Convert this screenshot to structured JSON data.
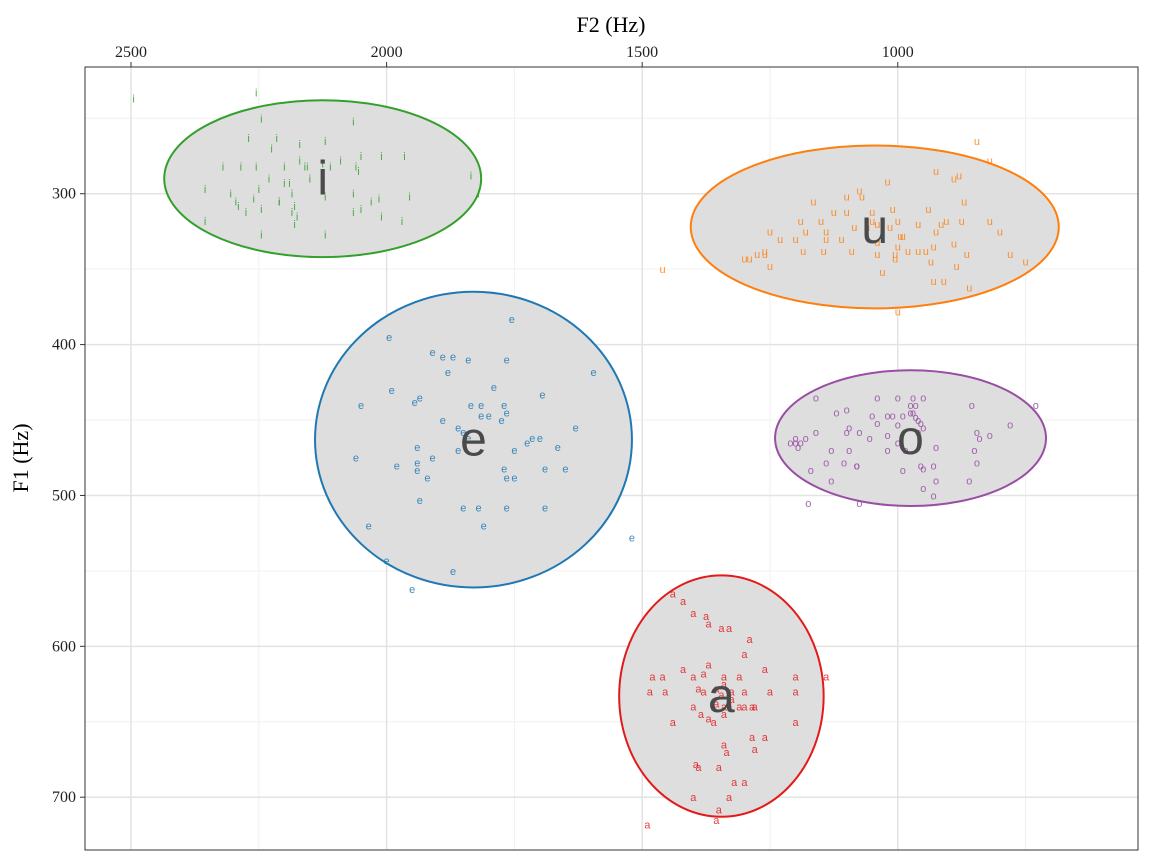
{
  "chart_data": {
    "type": "scatter",
    "xlabel": "F2 (Hz)",
    "ylabel": "F1 (Hz)",
    "x_axis_position": "top",
    "x_reversed": true,
    "y_reversed": true,
    "xlim": [
      2590,
      530
    ],
    "ylim": [
      216,
      735
    ],
    "x_ticks": [
      2500,
      2000,
      1500,
      1000
    ],
    "y_ticks": [
      300,
      400,
      500,
      600,
      700
    ],
    "grid": true,
    "ellipse_fill": "#dedede",
    "series": [
      {
        "name": "i",
        "color": "#33a02c",
        "ellipse": {
          "cx": 2125,
          "cy": 290,
          "rx": 310,
          "ry": 52
        },
        "points": [
          [
            2495,
            237
          ],
          [
            2255,
            233
          ],
          [
            2245,
            250
          ],
          [
            2215,
            263
          ],
          [
            2270,
            263
          ],
          [
            2225,
            270
          ],
          [
            2170,
            267
          ],
          [
            2120,
            265
          ],
          [
            2065,
            252
          ],
          [
            2010,
            275
          ],
          [
            1965,
            275
          ],
          [
            2050,
            275
          ],
          [
            2090,
            278
          ],
          [
            2110,
            282
          ],
          [
            2170,
            278
          ],
          [
            2155,
            282
          ],
          [
            2255,
            282
          ],
          [
            2320,
            282
          ],
          [
            2285,
            282
          ],
          [
            2200,
            282
          ],
          [
            2200,
            293
          ],
          [
            2160,
            282
          ],
          [
            2060,
            282
          ],
          [
            2055,
            285
          ],
          [
            2125,
            280
          ],
          [
            2150,
            290
          ],
          [
            2230,
            290
          ],
          [
            2250,
            297
          ],
          [
            2190,
            293
          ],
          [
            2355,
            297
          ],
          [
            2185,
            300
          ],
          [
            2260,
            303
          ],
          [
            2305,
            300
          ],
          [
            2210,
            305
          ],
          [
            2180,
            308
          ],
          [
            2120,
            302
          ],
          [
            2065,
            300
          ],
          [
            2015,
            303
          ],
          [
            1955,
            302
          ],
          [
            2295,
            305
          ],
          [
            2290,
            308
          ],
          [
            2050,
            310
          ],
          [
            2065,
            312
          ],
          [
            2245,
            310
          ],
          [
            2275,
            312
          ],
          [
            2185,
            312
          ],
          [
            2175,
            315
          ],
          [
            2355,
            318
          ],
          [
            2180,
            320
          ],
          [
            2010,
            315
          ],
          [
            1970,
            318
          ],
          [
            2245,
            327
          ],
          [
            2120,
            327
          ],
          [
            2210,
            305
          ],
          [
            2030,
            305
          ],
          [
            1835,
            288
          ],
          [
            1820,
            300
          ]
        ]
      },
      {
        "name": "u",
        "color": "#ff7f0e",
        "ellipse": {
          "cx": 1045,
          "cy": 322,
          "rx": 360,
          "ry": 54
        },
        "points": [
          [
            845,
            265
          ],
          [
            820,
            278
          ],
          [
            925,
            285
          ],
          [
            890,
            290
          ],
          [
            880,
            288
          ],
          [
            1020,
            292
          ],
          [
            1075,
            298
          ],
          [
            1070,
            302
          ],
          [
            1100,
            302
          ],
          [
            1165,
            305
          ],
          [
            1010,
            310
          ],
          [
            940,
            310
          ],
          [
            870,
            305
          ],
          [
            1050,
            312
          ],
          [
            1100,
            312
          ],
          [
            1125,
            312
          ],
          [
            1150,
            318
          ],
          [
            1190,
            318
          ],
          [
            1050,
            318
          ],
          [
            1040,
            320
          ],
          [
            1000,
            318
          ],
          [
            960,
            320
          ],
          [
            915,
            320
          ],
          [
            905,
            318
          ],
          [
            875,
            318
          ],
          [
            820,
            318
          ],
          [
            995,
            328
          ],
          [
            1015,
            322
          ],
          [
            1060,
            322
          ],
          [
            1085,
            322
          ],
          [
            1140,
            325
          ],
          [
            1180,
            325
          ],
          [
            1250,
            325
          ],
          [
            1200,
            330
          ],
          [
            1230,
            330
          ],
          [
            800,
            325
          ],
          [
            925,
            325
          ],
          [
            990,
            328
          ],
          [
            1110,
            330
          ],
          [
            1140,
            330
          ],
          [
            1260,
            338
          ],
          [
            1040,
            332
          ],
          [
            930,
            335
          ],
          [
            890,
            333
          ],
          [
            1090,
            338
          ],
          [
            1145,
            338
          ],
          [
            1185,
            338
          ],
          [
            1260,
            340
          ],
          [
            1000,
            335
          ],
          [
            980,
            338
          ],
          [
            960,
            338
          ],
          [
            1040,
            340
          ],
          [
            1005,
            340
          ],
          [
            945,
            338
          ],
          [
            865,
            340
          ],
          [
            780,
            340
          ],
          [
            1275,
            340
          ],
          [
            1290,
            343
          ],
          [
            1300,
            343
          ],
          [
            1005,
            343
          ],
          [
            935,
            345
          ],
          [
            750,
            345
          ],
          [
            1250,
            348
          ],
          [
            885,
            348
          ],
          [
            1030,
            352
          ],
          [
            930,
            358
          ],
          [
            910,
            358
          ],
          [
            860,
            362
          ],
          [
            1460,
            350
          ],
          [
            1000,
            378
          ]
        ]
      },
      {
        "name": "e",
        "color": "#1f78b4",
        "ellipse": {
          "cx": 1830,
          "cy": 463,
          "rx": 310,
          "ry": 98
        },
        "points": [
          [
            1755,
            383
          ],
          [
            1995,
            395
          ],
          [
            1910,
            405
          ],
          [
            1890,
            408
          ],
          [
            1870,
            408
          ],
          [
            1840,
            410
          ],
          [
            1765,
            410
          ],
          [
            1595,
            418
          ],
          [
            1880,
            418
          ],
          [
            1790,
            428
          ],
          [
            1990,
            430
          ],
          [
            1935,
            435
          ],
          [
            1945,
            438
          ],
          [
            1695,
            433
          ],
          [
            2050,
            440
          ],
          [
            1770,
            440
          ],
          [
            1765,
            445
          ],
          [
            1815,
            440
          ],
          [
            1835,
            440
          ],
          [
            1815,
            447
          ],
          [
            1800,
            447
          ],
          [
            1775,
            450
          ],
          [
            1890,
            450
          ],
          [
            1630,
            455
          ],
          [
            1860,
            455
          ],
          [
            1850,
            458
          ],
          [
            1840,
            462
          ],
          [
            1715,
            462
          ],
          [
            1700,
            462
          ],
          [
            1725,
            465
          ],
          [
            1665,
            468
          ],
          [
            1940,
            468
          ],
          [
            1860,
            470
          ],
          [
            1750,
            470
          ],
          [
            2060,
            475
          ],
          [
            1910,
            475
          ],
          [
            1940,
            478
          ],
          [
            1980,
            480
          ],
          [
            1770,
            482
          ],
          [
            1690,
            482
          ],
          [
            1650,
            482
          ],
          [
            1940,
            483
          ],
          [
            1765,
            488
          ],
          [
            1750,
            488
          ],
          [
            1920,
            488
          ],
          [
            1935,
            503
          ],
          [
            1850,
            508
          ],
          [
            1820,
            508
          ],
          [
            1765,
            508
          ],
          [
            1690,
            508
          ],
          [
            2035,
            520
          ],
          [
            1810,
            520
          ],
          [
            1520,
            528
          ],
          [
            2000,
            543
          ],
          [
            1870,
            550
          ],
          [
            1950,
            562
          ]
        ]
      },
      {
        "name": "o",
        "color": "#984ea3",
        "ellipse": {
          "cx": 975,
          "cy": 462,
          "rx": 265,
          "ry": 45
        },
        "points": [
          [
            1160,
            435
          ],
          [
            1040,
            435
          ],
          [
            1000,
            435
          ],
          [
            970,
            435
          ],
          [
            950,
            435
          ],
          [
            965,
            440
          ],
          [
            975,
            440
          ],
          [
            975,
            445
          ],
          [
            855,
            440
          ],
          [
            730,
            440
          ],
          [
            1120,
            445
          ],
          [
            1100,
            443
          ],
          [
            1050,
            447
          ],
          [
            1020,
            447
          ],
          [
            1010,
            447
          ],
          [
            990,
            447
          ],
          [
            970,
            445
          ],
          [
            965,
            448
          ],
          [
            960,
            450
          ],
          [
            955,
            452
          ],
          [
            1000,
            453
          ],
          [
            1040,
            452
          ],
          [
            950,
            455
          ],
          [
            960,
            458
          ],
          [
            845,
            458
          ],
          [
            820,
            460
          ],
          [
            780,
            453
          ],
          [
            1095,
            455
          ],
          [
            1100,
            458
          ],
          [
            1075,
            458
          ],
          [
            1160,
            458
          ],
          [
            1180,
            462
          ],
          [
            1190,
            465
          ],
          [
            1020,
            460
          ],
          [
            1000,
            465
          ],
          [
            1200,
            462
          ],
          [
            1055,
            462
          ],
          [
            840,
            462
          ],
          [
            1195,
            468
          ],
          [
            1210,
            465
          ],
          [
            1130,
            470
          ],
          [
            1095,
            470
          ],
          [
            985,
            470
          ],
          [
            1020,
            470
          ],
          [
            1200,
            465
          ],
          [
            850,
            470
          ],
          [
            925,
            468
          ],
          [
            1140,
            478
          ],
          [
            1105,
            478
          ],
          [
            1080,
            480
          ],
          [
            955,
            480
          ],
          [
            930,
            480
          ],
          [
            990,
            483
          ],
          [
            1170,
            483
          ],
          [
            1080,
            480
          ],
          [
            950,
            482
          ],
          [
            845,
            478
          ],
          [
            1130,
            490
          ],
          [
            925,
            490
          ],
          [
            860,
            490
          ],
          [
            950,
            495
          ],
          [
            930,
            500
          ],
          [
            1175,
            505
          ],
          [
            1075,
            505
          ]
        ]
      },
      {
        "name": "a",
        "color": "#e31a1c",
        "ellipse": {
          "cx": 1345,
          "cy": 633,
          "rx": 200,
          "ry": 80
        },
        "points": [
          [
            1440,
            565
          ],
          [
            1420,
            570
          ],
          [
            1400,
            578
          ],
          [
            1375,
            580
          ],
          [
            1370,
            585
          ],
          [
            1345,
            588
          ],
          [
            1330,
            588
          ],
          [
            1290,
            595
          ],
          [
            1300,
            605
          ],
          [
            1370,
            612
          ],
          [
            1380,
            618
          ],
          [
            1420,
            615
          ],
          [
            1260,
            615
          ],
          [
            1480,
            620
          ],
          [
            1460,
            620
          ],
          [
            1400,
            620
          ],
          [
            1340,
            620
          ],
          [
            1310,
            620
          ],
          [
            1200,
            620
          ],
          [
            1140,
            620
          ],
          [
            1340,
            625
          ],
          [
            1355,
            628
          ],
          [
            1485,
            630
          ],
          [
            1455,
            630
          ],
          [
            1300,
            630
          ],
          [
            1250,
            630
          ],
          [
            1200,
            630
          ],
          [
            1390,
            628
          ],
          [
            1380,
            630
          ],
          [
            1345,
            632
          ],
          [
            1325,
            630
          ],
          [
            1325,
            635
          ],
          [
            1355,
            638
          ],
          [
            1340,
            640
          ],
          [
            1300,
            640
          ],
          [
            1285,
            640
          ],
          [
            1280,
            640
          ],
          [
            1400,
            640
          ],
          [
            1330,
            638
          ],
          [
            1310,
            640
          ],
          [
            1340,
            645
          ],
          [
            1385,
            645
          ],
          [
            1370,
            648
          ],
          [
            1360,
            650
          ],
          [
            1440,
            650
          ],
          [
            1200,
            650
          ],
          [
            1285,
            660
          ],
          [
            1260,
            660
          ],
          [
            1340,
            665
          ],
          [
            1335,
            670
          ],
          [
            1280,
            668
          ],
          [
            1395,
            678
          ],
          [
            1350,
            680
          ],
          [
            1390,
            680
          ],
          [
            1320,
            690
          ],
          [
            1300,
            690
          ],
          [
            1400,
            700
          ],
          [
            1330,
            700
          ],
          [
            1490,
            718
          ],
          [
            1350,
            708
          ],
          [
            1355,
            715
          ]
        ]
      }
    ]
  }
}
